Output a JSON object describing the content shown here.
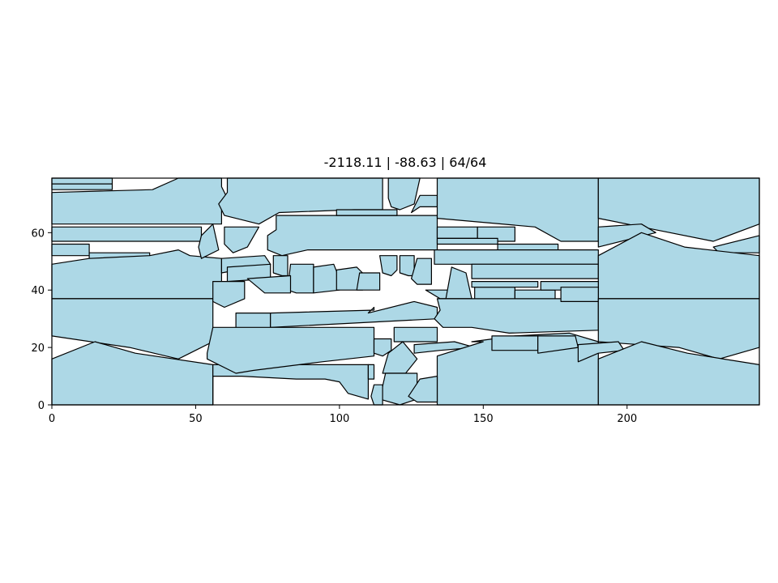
{
  "chart_data": {
    "type": "polygon-packing",
    "title": "-2118.11 | -88.63 | 64/64",
    "xlim": [
      0,
      246
    ],
    "ylim": [
      0,
      79
    ],
    "x_ticks": [
      0,
      50,
      100,
      150,
      200
    ],
    "y_ticks": [
      0,
      20,
      40,
      60
    ],
    "colors": {
      "fill": "#add8e6",
      "edge": "#000000"
    },
    "pieces": [
      [
        [
          0,
          79
        ],
        [
          21,
          79
        ],
        [
          21,
          77
        ],
        [
          0,
          77
        ]
      ],
      [
        [
          0,
          77
        ],
        [
          21,
          77
        ],
        [
          21,
          75
        ],
        [
          0,
          75
        ]
      ],
      [
        [
          0,
          74
        ],
        [
          35,
          75
        ],
        [
          44,
          79
        ],
        [
          59,
          79
        ],
        [
          59,
          76
        ],
        [
          61,
          72
        ],
        [
          59,
          70
        ],
        [
          59,
          63
        ],
        [
          0,
          63
        ]
      ],
      [
        [
          0,
          62
        ],
        [
          52,
          62
        ],
        [
          52,
          57
        ],
        [
          0,
          57
        ]
      ],
      [
        [
          0,
          56
        ],
        [
          13,
          56
        ],
        [
          13,
          52
        ],
        [
          0,
          52
        ]
      ],
      [
        [
          13,
          53
        ],
        [
          34,
          53
        ],
        [
          34,
          51
        ],
        [
          13,
          51
        ]
      ],
      [
        [
          0,
          49
        ],
        [
          13,
          51
        ],
        [
          34,
          52
        ],
        [
          44,
          54
        ],
        [
          48,
          52
        ],
        [
          59,
          51
        ],
        [
          59,
          37
        ],
        [
          0,
          37
        ]
      ],
      [
        [
          0,
          37
        ],
        [
          56,
          37
        ],
        [
          56,
          22
        ],
        [
          44,
          16
        ],
        [
          27,
          20
        ],
        [
          0,
          24
        ]
      ],
      [
        [
          0,
          16
        ],
        [
          15,
          22
        ],
        [
          29,
          18
        ],
        [
          56,
          14
        ],
        [
          56,
          0
        ],
        [
          0,
          0
        ]
      ],
      [
        [
          56,
          14
        ],
        [
          110,
          14
        ],
        [
          110,
          2
        ],
        [
          103,
          4
        ],
        [
          100,
          8
        ],
        [
          95,
          9
        ],
        [
          85,
          9
        ],
        [
          66,
          10
        ],
        [
          56,
          10
        ],
        [
          56,
          0
        ]
      ],
      [
        [
          61,
          79
        ],
        [
          115,
          79
        ],
        [
          115,
          68
        ],
        [
          105,
          68
        ],
        [
          79,
          67
        ],
        [
          72,
          63
        ],
        [
          60,
          66
        ],
        [
          58,
          70
        ],
        [
          61,
          74
        ],
        [
          61,
          79
        ]
      ],
      [
        [
          56,
          63
        ],
        [
          58,
          54
        ],
        [
          52,
          51
        ],
        [
          51,
          55
        ],
        [
          52,
          59
        ]
      ],
      [
        [
          60,
          62
        ],
        [
          72,
          62
        ],
        [
          68,
          55
        ],
        [
          63,
          53
        ],
        [
          60,
          56
        ]
      ],
      [
        [
          78,
          66
        ],
        [
          134,
          66
        ],
        [
          134,
          54
        ],
        [
          89,
          54
        ],
        [
          80,
          52
        ],
        [
          75,
          54
        ],
        [
          75,
          59
        ],
        [
          78,
          61
        ]
      ],
      [
        [
          99,
          68
        ],
        [
          120,
          68
        ],
        [
          120,
          66
        ],
        [
          99,
          66
        ]
      ],
      [
        [
          117,
          79
        ],
        [
          128,
          79
        ],
        [
          126,
          70
        ],
        [
          121,
          68
        ],
        [
          118,
          69
        ],
        [
          117,
          72
        ]
      ],
      [
        [
          128,
          73
        ],
        [
          134,
          73
        ],
        [
          134,
          69
        ],
        [
          128,
          69
        ],
        [
          125,
          67
        ]
      ],
      [
        [
          134,
          79
        ],
        [
          190,
          79
        ],
        [
          190,
          57
        ],
        [
          177,
          57
        ],
        [
          168,
          62
        ],
        [
          134,
          65
        ]
      ],
      [
        [
          190,
          79
        ],
        [
          246,
          79
        ],
        [
          246,
          63
        ],
        [
          230,
          57
        ],
        [
          210,
          61
        ],
        [
          190,
          65
        ]
      ],
      [
        [
          134,
          62
        ],
        [
          148,
          62
        ],
        [
          148,
          58
        ],
        [
          134,
          58
        ]
      ],
      [
        [
          148,
          62
        ],
        [
          161,
          62
        ],
        [
          161,
          57
        ],
        [
          148,
          57
        ]
      ],
      [
        [
          190,
          62
        ],
        [
          205,
          63
        ],
        [
          210,
          60
        ],
        [
          190,
          55
        ]
      ],
      [
        [
          230,
          55
        ],
        [
          246,
          59
        ],
        [
          246,
          53
        ],
        [
          232,
          53
        ]
      ],
      [
        [
          134,
          58
        ],
        [
          155,
          58
        ],
        [
          155,
          56
        ],
        [
          134,
          56
        ]
      ],
      [
        [
          155,
          56
        ],
        [
          176,
          56
        ],
        [
          176,
          54
        ],
        [
          155,
          54
        ]
      ],
      [
        [
          133,
          54
        ],
        [
          190,
          54
        ],
        [
          190,
          49
        ],
        [
          133,
          49
        ]
      ],
      [
        [
          146,
          49
        ],
        [
          190,
          49
        ],
        [
          190,
          44
        ],
        [
          146,
          44
        ]
      ],
      [
        [
          190,
          52
        ],
        [
          205,
          60
        ],
        [
          220,
          55
        ],
        [
          246,
          52
        ],
        [
          246,
          37
        ],
        [
          190,
          37
        ]
      ],
      [
        [
          59,
          51
        ],
        [
          74,
          52
        ],
        [
          76,
          49
        ],
        [
          59,
          46
        ]
      ],
      [
        [
          61,
          48
        ],
        [
          76,
          49
        ],
        [
          76,
          44
        ],
        [
          61,
          43
        ]
      ],
      [
        [
          77,
          52
        ],
        [
          82,
          52
        ],
        [
          82,
          45
        ],
        [
          80,
          45
        ],
        [
          77,
          46
        ]
      ],
      [
        [
          83,
          49
        ],
        [
          91,
          49
        ],
        [
          91,
          39
        ],
        [
          85,
          39
        ],
        [
          82,
          40
        ]
      ],
      [
        [
          91,
          48
        ],
        [
          98,
          49
        ],
        [
          100,
          44
        ],
        [
          100,
          40
        ],
        [
          91,
          39
        ]
      ],
      [
        [
          99,
          47
        ],
        [
          106,
          48
        ],
        [
          108,
          46
        ],
        [
          108,
          40
        ],
        [
          99,
          40
        ]
      ],
      [
        [
          107,
          46
        ],
        [
          114,
          46
        ],
        [
          114,
          40
        ],
        [
          106,
          40
        ]
      ],
      [
        [
          114,
          52
        ],
        [
          120,
          52
        ],
        [
          120,
          47
        ],
        [
          118,
          45
        ],
        [
          115,
          46
        ]
      ],
      [
        [
          121,
          52
        ],
        [
          126,
          52
        ],
        [
          126,
          45
        ],
        [
          124,
          45
        ],
        [
          121,
          46
        ]
      ],
      [
        [
          127,
          51
        ],
        [
          132,
          51
        ],
        [
          132,
          42
        ],
        [
          127,
          42
        ],
        [
          125,
          44
        ]
      ],
      [
        [
          68,
          44
        ],
        [
          83,
          45
        ],
        [
          83,
          39
        ],
        [
          74,
          39
        ]
      ],
      [
        [
          56,
          43
        ],
        [
          67,
          43
        ],
        [
          67,
          37
        ],
        [
          60,
          34
        ],
        [
          56,
          36
        ]
      ],
      [
        [
          64,
          32
        ],
        [
          76,
          32
        ],
        [
          76,
          27
        ],
        [
          70,
          24
        ],
        [
          64,
          27
        ]
      ],
      [
        [
          76,
          32
        ],
        [
          112,
          33
        ],
        [
          112,
          34
        ],
        [
          110,
          32
        ],
        [
          126,
          36
        ],
        [
          134,
          34
        ],
        [
          134,
          30
        ],
        [
          76,
          27
        ]
      ],
      [
        [
          130,
          40
        ],
        [
          139,
          40
        ],
        [
          139,
          37
        ],
        [
          135,
          37
        ]
      ],
      [
        [
          137,
          37
        ],
        [
          146,
          37
        ],
        [
          144,
          46
        ],
        [
          139,
          48
        ]
      ],
      [
        [
          146,
          37
        ],
        [
          190,
          37
        ],
        [
          190,
          26
        ],
        [
          159,
          25
        ],
        [
          146,
          27
        ],
        [
          136,
          27
        ],
        [
          133,
          30
        ],
        [
          135,
          33
        ],
        [
          134,
          37
        ]
      ],
      [
        [
          147,
          37
        ],
        [
          161,
          37
        ],
        [
          161,
          41
        ],
        [
          147,
          41
        ]
      ],
      [
        [
          161,
          37
        ],
        [
          175,
          37
        ],
        [
          175,
          40
        ],
        [
          161,
          40
        ]
      ],
      [
        [
          146,
          41
        ],
        [
          169,
          41
        ],
        [
          169,
          43
        ],
        [
          146,
          43
        ]
      ],
      [
        [
          170,
          40
        ],
        [
          190,
          40
        ],
        [
          190,
          43
        ],
        [
          170,
          43
        ]
      ],
      [
        [
          177,
          36
        ],
        [
          190,
          36
        ],
        [
          190,
          41
        ],
        [
          177,
          41
        ]
      ],
      [
        [
          190,
          37
        ],
        [
          246,
          37
        ],
        [
          246,
          20
        ],
        [
          232,
          16
        ],
        [
          218,
          20
        ],
        [
          190,
          22
        ]
      ],
      [
        [
          56,
          27
        ],
        [
          112,
          27
        ],
        [
          112,
          17
        ],
        [
          94,
          15
        ],
        [
          70,
          12
        ],
        [
          64,
          11
        ],
        [
          54,
          16
        ],
        [
          54,
          18
        ]
      ],
      [
        [
          112,
          23
        ],
        [
          118,
          23
        ],
        [
          118,
          19
        ],
        [
          115,
          17
        ],
        [
          112,
          18
        ]
      ],
      [
        [
          119,
          27
        ],
        [
          134,
          27
        ],
        [
          134,
          22
        ],
        [
          119,
          22
        ]
      ],
      [
        [
          126,
          21
        ],
        [
          140,
          22
        ],
        [
          147,
          20
        ],
        [
          135,
          19
        ],
        [
          126,
          18
        ]
      ],
      [
        [
          122,
          22
        ],
        [
          127,
          16
        ],
        [
          123,
          11
        ],
        [
          115,
          11
        ],
        [
          117,
          18
        ]
      ],
      [
        [
          146,
          22
        ],
        [
          161,
          24
        ],
        [
          180,
          25
        ],
        [
          190,
          22
        ],
        [
          190,
          0
        ],
        [
          134,
          0
        ],
        [
          134,
          17
        ],
        [
          150,
          22
        ]
      ],
      [
        [
          153,
          24
        ],
        [
          169,
          24
        ],
        [
          169,
          19
        ],
        [
          153,
          19
        ]
      ],
      [
        [
          169,
          24
        ],
        [
          182,
          24
        ],
        [
          183,
          20
        ],
        [
          169,
          18
        ]
      ],
      [
        [
          183,
          21
        ],
        [
          197,
          22
        ],
        [
          199,
          19
        ],
        [
          190,
          18
        ],
        [
          183,
          15
        ]
      ],
      [
        [
          190,
          16
        ],
        [
          205,
          22
        ],
        [
          221,
          18
        ],
        [
          246,
          14
        ],
        [
          246,
          0
        ],
        [
          190,
          0
        ]
      ],
      [
        [
          116,
          11
        ],
        [
          127,
          11
        ],
        [
          127,
          2
        ],
        [
          121,
          0
        ],
        [
          114,
          2
        ]
      ],
      [
        [
          128,
          9
        ],
        [
          134,
          10
        ],
        [
          134,
          1
        ],
        [
          127,
          1
        ],
        [
          124,
          3
        ]
      ],
      [
        [
          112,
          7
        ],
        [
          115,
          7
        ],
        [
          115,
          0
        ],
        [
          112,
          0
        ],
        [
          111,
          3
        ]
      ],
      [
        [
          110,
          14
        ],
        [
          112,
          14
        ],
        [
          112,
          9
        ],
        [
          110,
          9
        ]
      ]
    ]
  }
}
